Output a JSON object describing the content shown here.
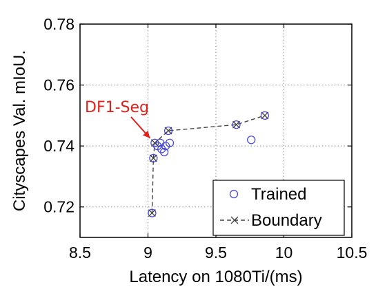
{
  "chart_data": {
    "type": "scatter",
    "xlabel": "Latency on 1080Ti/(ms)",
    "ylabel": "Cityscapes Val. mIoU.",
    "xlim": [
      8.5,
      10.5
    ],
    "ylim": [
      0.71,
      0.78
    ],
    "xticks": [
      "8.5",
      "9",
      "9.5",
      "10",
      "10.5"
    ],
    "yticks": [
      "0.72",
      "0.74",
      "0.76",
      "0.78"
    ],
    "grid": true,
    "legend_position": "bottom-right",
    "series": [
      {
        "name": "Trained",
        "marker": "circle",
        "color": "#4a4ad8",
        "points": [
          {
            "x": 9.03,
            "y": 0.718
          },
          {
            "x": 9.04,
            "y": 0.736
          },
          {
            "x": 9.05,
            "y": 0.741
          },
          {
            "x": 9.07,
            "y": 0.74
          },
          {
            "x": 9.09,
            "y": 0.741
          },
          {
            "x": 9.1,
            "y": 0.739
          },
          {
            "x": 9.12,
            "y": 0.738
          },
          {
            "x": 9.13,
            "y": 0.74
          },
          {
            "x": 9.15,
            "y": 0.745
          },
          {
            "x": 9.16,
            "y": 0.741
          },
          {
            "x": 9.65,
            "y": 0.747
          },
          {
            "x": 9.76,
            "y": 0.742
          },
          {
            "x": 9.86,
            "y": 0.75
          }
        ]
      },
      {
        "name": "Boundary",
        "marker": "x",
        "line": "dashed",
        "color": "#444444",
        "points": [
          {
            "x": 9.03,
            "y": 0.718
          },
          {
            "x": 9.04,
            "y": 0.736
          },
          {
            "x": 9.05,
            "y": 0.741
          },
          {
            "x": 9.15,
            "y": 0.745
          },
          {
            "x": 9.65,
            "y": 0.747
          },
          {
            "x": 9.86,
            "y": 0.75
          }
        ]
      }
    ],
    "annotations": [
      {
        "text": "DF1-Seg",
        "color": "#e0201b",
        "target": {
          "x": 9.04,
          "y": 0.741
        }
      }
    ]
  }
}
